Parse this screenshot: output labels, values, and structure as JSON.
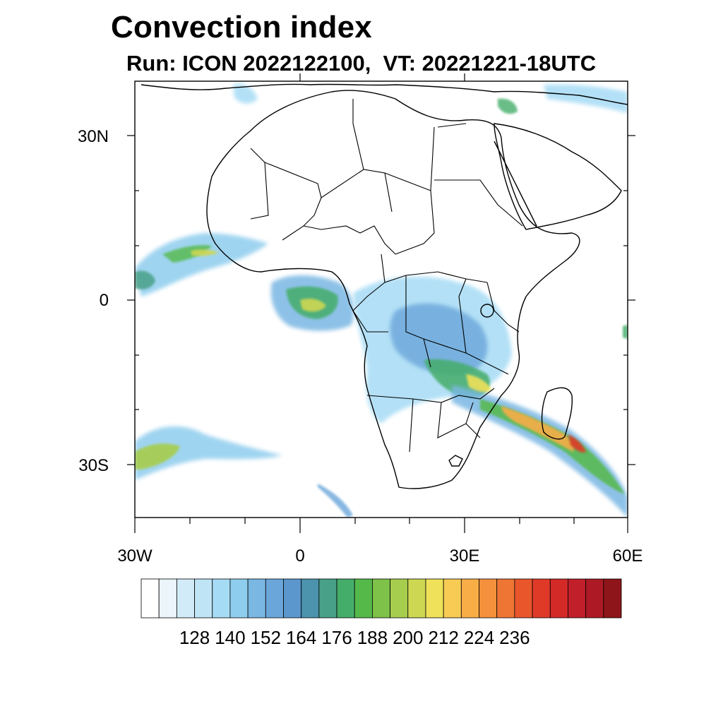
{
  "title": "Convection index",
  "subtitle": "Run: ICON 2022122100,  VT: 20221221-18UTC",
  "axes": {
    "lat_labels": [
      "30N",
      "0",
      "30S"
    ],
    "lon_labels": [
      "30W",
      "0",
      "30E",
      "60E"
    ]
  },
  "colorbar": {
    "labels": [
      "128",
      "140",
      "152",
      "164",
      "176",
      "188",
      "200",
      "212",
      "224",
      "236"
    ],
    "colors": [
      "#ffffff",
      "#ebf5fb",
      "#d2ebf8",
      "#bfe4f6",
      "#a6dbf5",
      "#8fcdee",
      "#7ab7e3",
      "#6aa6da",
      "#5b97cd",
      "#4c93ad",
      "#48a088",
      "#44ad6a",
      "#55b94a",
      "#7ec249",
      "#a7cd4e",
      "#cdd752",
      "#efe15a",
      "#f8cb55",
      "#f8ad47",
      "#f5913c",
      "#ef7534",
      "#e9562c",
      "#df3a28",
      "#d32a28",
      "#c1202b",
      "#ad1a25",
      "#8e1519"
    ]
  },
  "colors": {
    "frame": "#000000",
    "coast": "#000000",
    "background": "#ffffff"
  }
}
